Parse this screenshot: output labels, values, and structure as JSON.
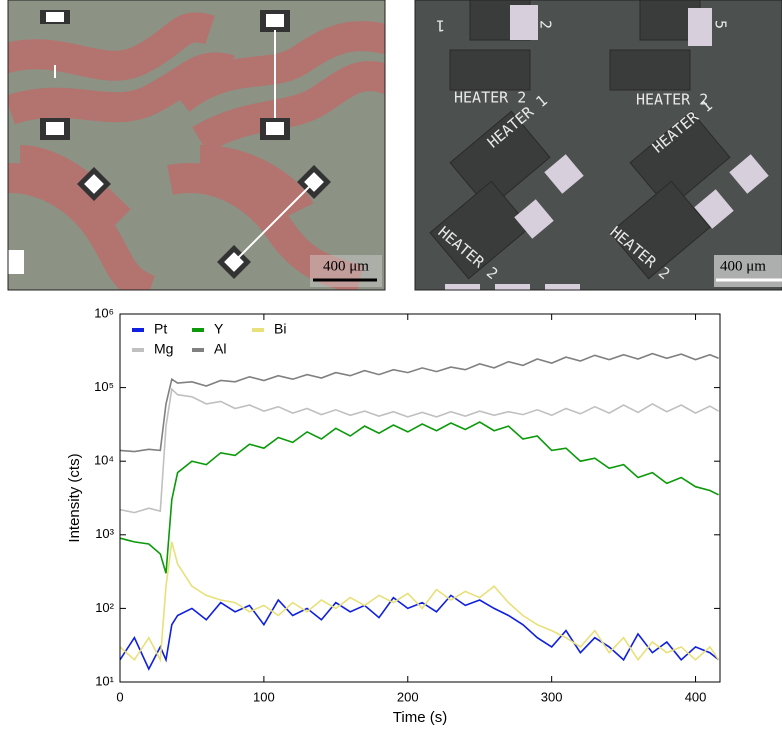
{
  "panels": [
    {
      "scale_bar": "400 μm"
    },
    {
      "scale_bar": "400 μm",
      "labels": [
        "HEATER 2",
        "HEATER 2",
        "HEATER 1",
        "HEATER 1",
        "HEATER 2",
        "HEATER 2",
        "1",
        "2",
        "5"
      ]
    }
  ],
  "chart_data": {
    "type": "line",
    "x_label": "Time (s)",
    "y_label": "Intensity (cts)",
    "log_y": true,
    "legend": "top-left",
    "xlim": [
      0,
      417
    ],
    "xticks": [
      0,
      100,
      200,
      300,
      400
    ],
    "ylim": [
      10,
      1000000
    ],
    "yticks": [
      {
        "value": 10,
        "label": "10¹"
      },
      {
        "value": 100,
        "label": "10²"
      },
      {
        "value": 1000,
        "label": "10³"
      },
      {
        "value": 10000,
        "label": "10⁴"
      },
      {
        "value": 100000,
        "label": "10⁵"
      },
      {
        "value": 1000000,
        "label": "10⁶"
      }
    ],
    "x": [
      0,
      10,
      20,
      28,
      32,
      36,
      40,
      50,
      60,
      70,
      80,
      90,
      100,
      110,
      120,
      130,
      140,
      150,
      160,
      170,
      180,
      190,
      200,
      210,
      220,
      230,
      240,
      250,
      260,
      270,
      280,
      290,
      300,
      310,
      320,
      330,
      340,
      350,
      360,
      370,
      380,
      390,
      400,
      410,
      416
    ],
    "series": [
      {
        "name": "Al",
        "color": "#808080",
        "values": [
          14000,
          13500,
          14500,
          14000,
          60000,
          130000,
          115000,
          120000,
          105000,
          125000,
          120000,
          140000,
          125000,
          145000,
          130000,
          150000,
          135000,
          160000,
          145000,
          170000,
          150000,
          175000,
          160000,
          185000,
          165000,
          190000,
          175000,
          210000,
          185000,
          225000,
          200000,
          245000,
          215000,
          260000,
          230000,
          275000,
          240000,
          280000,
          245000,
          290000,
          250000,
          285000,
          240000,
          280000,
          250000
        ]
      },
      {
        "name": "Mg",
        "color": "#c0c0c0",
        "values": [
          2200,
          2000,
          2300,
          2100,
          30000,
          95000,
          80000,
          75000,
          60000,
          65000,
          52000,
          58000,
          48000,
          55000,
          45000,
          52000,
          43000,
          50000,
          42000,
          48000,
          41000,
          47000,
          40000,
          46000,
          40000,
          47000,
          41000,
          48000,
          42000,
          47000,
          43000,
          50000,
          42000,
          52000,
          44000,
          55000,
          45000,
          58000,
          46000,
          60000,
          47000,
          58000,
          45000,
          56000,
          48000
        ]
      },
      {
        "name": "Y",
        "color": "#0a9a0a",
        "values": [
          900,
          800,
          750,
          550,
          300,
          3000,
          7000,
          10000,
          9000,
          13000,
          12000,
          17000,
          15000,
          21000,
          18000,
          25000,
          20000,
          28000,
          22000,
          30000,
          24000,
          31000,
          25000,
          32000,
          26000,
          33000,
          27000,
          34000,
          26000,
          30000,
          20000,
          22000,
          14000,
          15000,
          10000,
          11000,
          8000,
          9000,
          6000,
          7000,
          5000,
          6000,
          4500,
          4000,
          3500
        ]
      },
      {
        "name": "Pt",
        "color": "#1020e0",
        "values": [
          20,
          40,
          15,
          30,
          20,
          60,
          80,
          100,
          70,
          120,
          90,
          110,
          60,
          130,
          80,
          100,
          70,
          120,
          90,
          110,
          75,
          140,
          100,
          120,
          90,
          150,
          110,
          130,
          100,
          80,
          60,
          40,
          30,
          50,
          25,
          40,
          30,
          20,
          45,
          25,
          35,
          20,
          30,
          25,
          20
        ]
      },
      {
        "name": "Bi",
        "color": "#e8e07a",
        "values": [
          30,
          20,
          40,
          20,
          200,
          800,
          400,
          200,
          150,
          130,
          120,
          90,
          110,
          80,
          120,
          90,
          130,
          100,
          140,
          110,
          150,
          120,
          160,
          100,
          180,
          130,
          170,
          140,
          200,
          120,
          80,
          60,
          50,
          40,
          30,
          50,
          25,
          40,
          20,
          35,
          25,
          30,
          20,
          30,
          20
        ]
      }
    ]
  }
}
